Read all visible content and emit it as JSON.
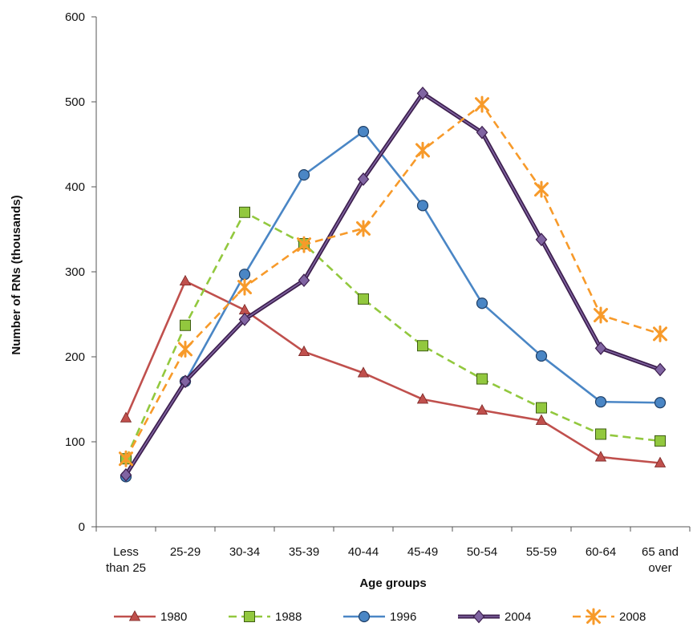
{
  "chart_data": {
    "type": "line",
    "xlabel": "Age groups",
    "ylabel": "Number of RNs (thousands)",
    "ylim": [
      0,
      600
    ],
    "yticks": [
      0,
      100,
      200,
      300,
      400,
      500,
      600
    ],
    "grid": false,
    "legend_position": "bottom",
    "categories": [
      [
        "Less",
        "than 25"
      ],
      [
        "25-29"
      ],
      [
        "30-34"
      ],
      [
        "35-39"
      ],
      [
        "40-44"
      ],
      [
        "45-49"
      ],
      [
        "50-54"
      ],
      [
        "55-59"
      ],
      [
        "60-64"
      ],
      [
        "65 and",
        "over"
      ]
    ],
    "series": [
      {
        "name": "1980",
        "color": "#c0504d",
        "dash": "solid",
        "marker": "triangle",
        "values": [
          128,
          289,
          255,
          206,
          181,
          150,
          137,
          125,
          82,
          75
        ]
      },
      {
        "name": "1988",
        "color": "#92c83e",
        "dash": "dashed",
        "marker": "square",
        "values": [
          80,
          237,
          370,
          333,
          268,
          213,
          174,
          140,
          109,
          101
        ]
      },
      {
        "name": "1996",
        "color": "#4a86c5",
        "dash": "solid",
        "marker": "circle",
        "values": [
          59,
          171,
          297,
          414,
          465,
          378,
          263,
          201,
          147,
          146
        ]
      },
      {
        "name": "2004",
        "color": "#3d1f4e",
        "inner": "#8064a2",
        "dash": "solid",
        "marker": "diamond",
        "values": [
          61,
          171,
          244,
          290,
          409,
          510,
          464,
          338,
          210,
          185
        ]
      },
      {
        "name": "2008",
        "color": "#f79a2a",
        "dash": "dashed",
        "marker": "star",
        "values": [
          80,
          209,
          282,
          332,
          351,
          443,
          497,
          397,
          249,
          227
        ]
      }
    ]
  }
}
